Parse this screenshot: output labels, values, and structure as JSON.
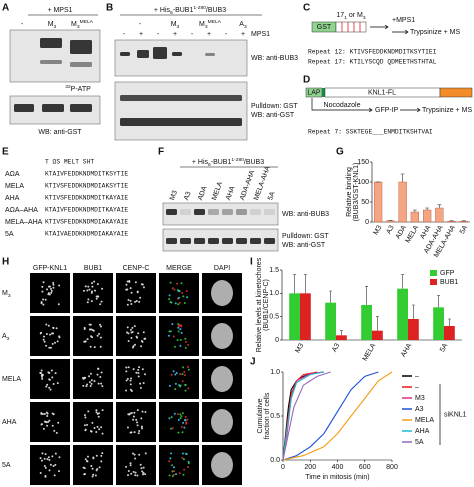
{
  "panel_letters": [
    "A",
    "B",
    "C",
    "D",
    "E",
    "F",
    "G",
    "H",
    "I",
    "J"
  ],
  "panel_a": {
    "header": "+ MPS1",
    "lanes": [
      [
        {
          "t": "-"
        }
      ],
      [
        {
          "t": "M"
        },
        {
          "sub": "3"
        }
      ],
      [
        {
          "t": "M"
        },
        {
          "sub": "3"
        },
        {
          "sup": "MELA"
        }
      ]
    ],
    "labels": [
      [
        {
          "sup": "32"
        },
        {
          "t": "P-ATP"
        }
      ],
      [
        {
          "t": "WB: anti-GST"
        }
      ]
    ]
  },
  "panel_b": {
    "header": [
      {
        "t": "+ His"
      },
      {
        "sub": "6"
      },
      {
        "t": "-BUB1"
      },
      {
        "sup": "1-280"
      },
      {
        "t": "/BUB3"
      }
    ],
    "lanes": [
      [
        {
          "t": "-"
        }
      ],
      [
        {
          "t": "M"
        },
        {
          "sub": "3"
        }
      ],
      [
        {
          "t": "M"
        },
        {
          "sub": "3"
        },
        {
          "sup": "MELA"
        }
      ],
      [
        {
          "t": "A"
        },
        {
          "sub": "3"
        }
      ]
    ],
    "mps1": [
      "-",
      "+",
      "-",
      "+",
      "-",
      "+",
      "-",
      "+"
    ],
    "mps1_label": "MPS1",
    "labels": [
      "WB: anti-BUB3",
      "Pulldown: GST",
      "WB: anti-GST"
    ]
  },
  "panel_c": {
    "construct": "GST",
    "insert": [
      {
        "t": "17"
      },
      {
        "sub": "1"
      },
      {
        "t": " or M"
      },
      {
        "sub": "3"
      }
    ],
    "step": "+MPS1",
    "step2": "Trypsinize + MS",
    "repeats": [
      "Repeat 12: KTIVSFEDDKNDMDITKSYTIEI",
      "Repeat 17: KTILYSCQD QDMEETHSTHTAL"
    ]
  },
  "panel_d": {
    "tag": "LAP",
    "construct": "KNL1-FL",
    "steps": [
      "Nocodazole",
      "GFP-IP",
      "Trypsinize + MS"
    ],
    "repeat": "Repeat 7:  SSKTEGE___ENMDITKSHTVAI"
  },
  "panel_e": {
    "header": "T  ΩS          MELT SHT",
    "rows": [
      [
        "AΩA",
        "KTAIVFEDDKNDMDITKSYTIE"
      ],
      [
        "MELA",
        "KTIVSFEDDKNDMDIAKSYTIE"
      ],
      [
        "AHA",
        "KTIVSFEDDKNDMDITKAYAIE"
      ],
      [
        "AΩA–AHA",
        "KTAIVFEDDKNDMDITKAYAIE"
      ],
      [
        "MELA–AHA",
        "KTIVSFEDDKNDMDIAKAYAIE"
      ],
      [
        "5A",
        "KTAIVAEDDKNDMDIAKAYAIE"
      ]
    ]
  },
  "panel_f": {
    "header": [
      {
        "t": "+ His"
      },
      {
        "sub": "6"
      },
      {
        "t": "-BUB1"
      },
      {
        "sup": "1-280"
      },
      {
        "t": "/BUB3"
      }
    ],
    "lanes": [
      "M3",
      "A3",
      "ADA",
      "MELA",
      "AHA",
      "ADA-AHA",
      "MELA-AHA",
      "5A"
    ],
    "labels": [
      "WB: anti-BUB3",
      "Pulldown: GST",
      "WB: anti-GST"
    ]
  },
  "panel_h": {
    "channels": [
      "GFP-KNL1",
      "BUB1",
      "CENP-C",
      "MERGE",
      "DAPI"
    ],
    "channel_colors": [
      "#33cc33",
      "#e03030",
      "#33ccff",
      "#ffffff",
      "#ffffff"
    ],
    "rows": [
      [
        {
          "t": "M"
        },
        {
          "sub": "3"
        }
      ],
      [
        {
          "t": "A"
        },
        {
          "sub": "3"
        }
      ],
      [
        {
          "t": "MELA"
        }
      ],
      [
        {
          "t": "AHA"
        }
      ],
      [
        {
          "t": "5A"
        }
      ]
    ]
  },
  "chart_data": [
    {
      "type": "bar",
      "ylabel": [
        "Relative binding",
        "(BUB3/GST-KNL1)"
      ],
      "categories": [
        "M3",
        "A3",
        "ADA",
        "MELA",
        "AHA",
        "ADA-AHA",
        "MELA-AHA",
        "5A"
      ],
      "values": [
        100,
        3,
        100,
        25,
        30,
        35,
        2,
        2
      ],
      "errors": [
        0,
        1,
        20,
        5,
        5,
        8,
        1,
        1
      ],
      "color": "#f4a582",
      "ylim": [
        0,
        150
      ],
      "yticks": [
        0,
        50,
        100,
        150
      ]
    },
    {
      "type": "grouped-bar",
      "ylabel": [
        "Relative levels at kinetochores",
        "(BUB1/CENP-C)"
      ],
      "categories": [
        "M3",
        "A3",
        "MELA",
        "AHA",
        "5A"
      ],
      "series": [
        {
          "name": "GFP",
          "color": "#33cc33",
          "values": [
            1.0,
            0.8,
            0.75,
            1.1,
            0.7
          ],
          "errors": [
            0.4,
            0.25,
            0.4,
            0.3,
            0.25
          ]
        },
        {
          "name": "BUB1",
          "color": "#dd2222",
          "values": [
            1.0,
            0.1,
            0.2,
            0.45,
            0.3
          ],
          "errors": [
            0.4,
            0.1,
            0.3,
            0.3,
            0.15
          ]
        }
      ],
      "ylim": [
        0,
        1.5
      ],
      "yticks": [
        0,
        0.5,
        {
          "value": 1,
          "label": "1.0"
        },
        1.5
      ],
      "legend": "upper right"
    },
    {
      "type": "line",
      "xlabel": "Time in mitosis (min)",
      "ylabel": [
        "Cumulative",
        "fraction of cells"
      ],
      "series": [
        {
          "name": "–",
          "color": "#000000",
          "x": [
            0,
            20,
            40,
            60,
            100,
            150,
            200,
            300
          ],
          "values": [
            0,
            0.3,
            0.6,
            0.8,
            0.9,
            0.95,
            0.98,
            1
          ]
        },
        {
          "name": "–",
          "color": "#e41a1c",
          "x": [
            0,
            30,
            60,
            100,
            150,
            250
          ],
          "values": [
            0,
            0.4,
            0.75,
            0.9,
            0.97,
            1
          ]
        },
        {
          "name": "M3",
          "color": "#e7298a",
          "x": [
            0,
            30,
            60,
            100,
            200,
            300
          ],
          "values": [
            0,
            0.3,
            0.7,
            0.9,
            0.98,
            1
          ]
        },
        {
          "name": "A3",
          "color": "#1f4fd8",
          "x": [
            0,
            100,
            200,
            300,
            400,
            500,
            600,
            700
          ],
          "values": [
            0,
            0.05,
            0.15,
            0.3,
            0.55,
            0.8,
            0.95,
            1
          ]
        },
        {
          "name": "MELA",
          "color": "#f39c12",
          "x": [
            0,
            150,
            300,
            400,
            500,
            600,
            700,
            800
          ],
          "values": [
            0,
            0.05,
            0.15,
            0.3,
            0.5,
            0.7,
            0.9,
            1
          ]
        },
        {
          "name": "AHA",
          "color": "#17becf",
          "x": [
            0,
            30,
            60,
            100,
            200,
            300
          ],
          "values": [
            0,
            0.35,
            0.7,
            0.88,
            0.97,
            1
          ]
        },
        {
          "name": "5A",
          "color": "#9467bd",
          "x": [
            0,
            40,
            80,
            150,
            250,
            350
          ],
          "values": [
            0,
            0.3,
            0.6,
            0.85,
            0.95,
            1
          ]
        }
      ],
      "legend_group": "siKNL1",
      "xlim": [
        0,
        800
      ],
      "xticks": [
        0,
        200,
        400,
        600,
        800
      ],
      "ylim": [
        0,
        1
      ],
      "yticks": [
        {
          "value": 0,
          "label": "0.0"
        },
        0.5,
        {
          "value": 1,
          "label": "1.0"
        }
      ]
    }
  ]
}
